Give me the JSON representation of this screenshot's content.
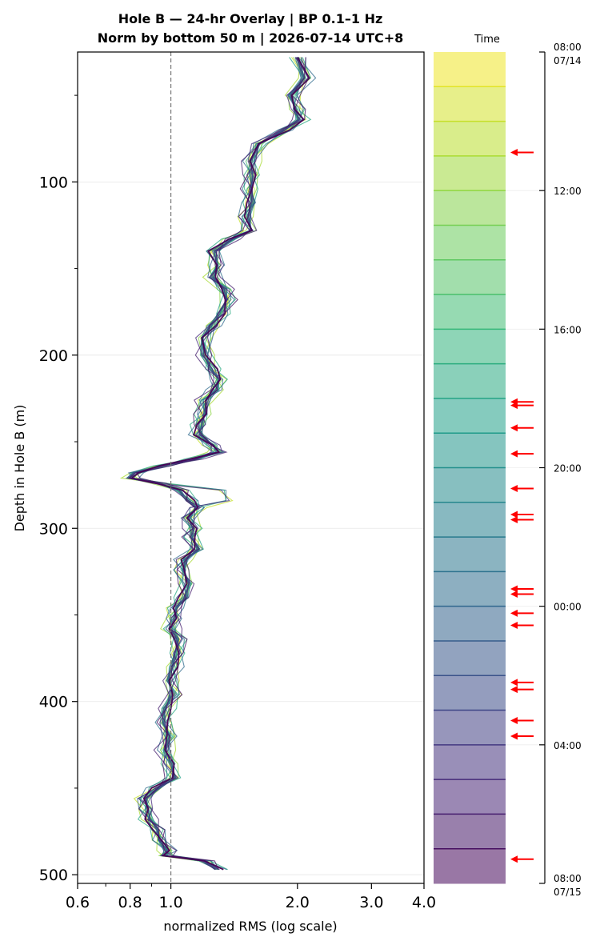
{
  "chart_data": {
    "type": "line",
    "title_line1": "Hole B — 24-hr Overlay  |  BP 0.1–1 Hz",
    "title_line2": "Norm by bottom 50 m  |  2026-07-14 UTC+8",
    "xlabel": "normalized RMS  (log scale)",
    "ylabel": "Depth in Hole B (m)",
    "xscale": "log",
    "xlim": [
      0.6,
      4.0
    ],
    "ylim": [
      505,
      25
    ],
    "x_ticks": [
      "0.6",
      "0.8",
      "1.0",
      "2.0",
      "3.0",
      "4.0"
    ],
    "x_tick_values": [
      0.6,
      0.8,
      1.0,
      2.0,
      3.0,
      4.0
    ],
    "y_ticks": [
      "100",
      "200",
      "300",
      "400",
      "500"
    ],
    "y_tick_values": [
      100,
      200,
      300,
      400,
      500
    ],
    "reference_line_x": 1.0,
    "grid": "horizontal",
    "colormap": "viridis",
    "series_count": 24,
    "profile": {
      "depth": [
        28,
        40,
        50,
        58,
        64,
        70,
        78,
        88,
        96,
        104,
        112,
        120,
        128,
        133,
        140,
        148,
        155,
        162,
        168,
        176,
        183,
        190,
        200,
        208,
        214,
        220,
        226,
        234,
        240,
        246,
        252,
        256,
        260,
        264,
        268,
        271,
        274,
        278,
        284,
        288,
        294,
        300,
        305,
        312,
        318,
        324,
        332,
        340,
        346,
        352,
        358,
        364,
        372,
        380,
        388,
        396,
        404,
        412,
        420,
        428,
        436,
        444,
        450,
        456,
        462,
        468,
        474,
        480,
        486,
        489,
        492,
        497
      ],
      "rms": [
        2.0,
        2.08,
        1.93,
        1.98,
        2.02,
        1.86,
        1.62,
        1.55,
        1.56,
        1.55,
        1.56,
        1.52,
        1.55,
        1.4,
        1.27,
        1.29,
        1.26,
        1.34,
        1.36,
        1.31,
        1.25,
        1.19,
        1.2,
        1.25,
        1.3,
        1.28,
        1.21,
        1.2,
        1.18,
        1.17,
        1.26,
        1.3,
        1.14,
        0.95,
        0.82,
        0.8,
        0.93,
        1.05,
        1.1,
        1.15,
        1.1,
        1.13,
        1.12,
        1.16,
        1.08,
        1.07,
        1.1,
        1.08,
        1.03,
        1.02,
        1.0,
        1.04,
        1.03,
        1.01,
        0.99,
        1.01,
        0.97,
        0.96,
        0.99,
        0.97,
        1.0,
        1.02,
        0.93,
        0.87,
        0.88,
        0.89,
        0.93,
        0.94,
        0.98,
        0.97,
        1.2,
        1.29
      ]
    },
    "colorbar": {
      "label": "Time",
      "top_label": "08:00",
      "top_date": "07/14",
      "bottom_label": "08:00",
      "bottom_date": "07/15",
      "ticks": [
        "12:00",
        "16:00",
        "20:00",
        "00:00",
        "04:00"
      ],
      "tick_hours": [
        4,
        8,
        12,
        16,
        20
      ],
      "total_hours": 24,
      "arrow_hours": [
        2.9,
        10.1,
        10.2,
        10.85,
        11.6,
        12.6,
        13.35,
        13.5,
        15.5,
        15.65,
        16.2,
        16.55,
        18.2,
        18.4,
        19.3,
        19.75,
        23.3
      ]
    }
  }
}
